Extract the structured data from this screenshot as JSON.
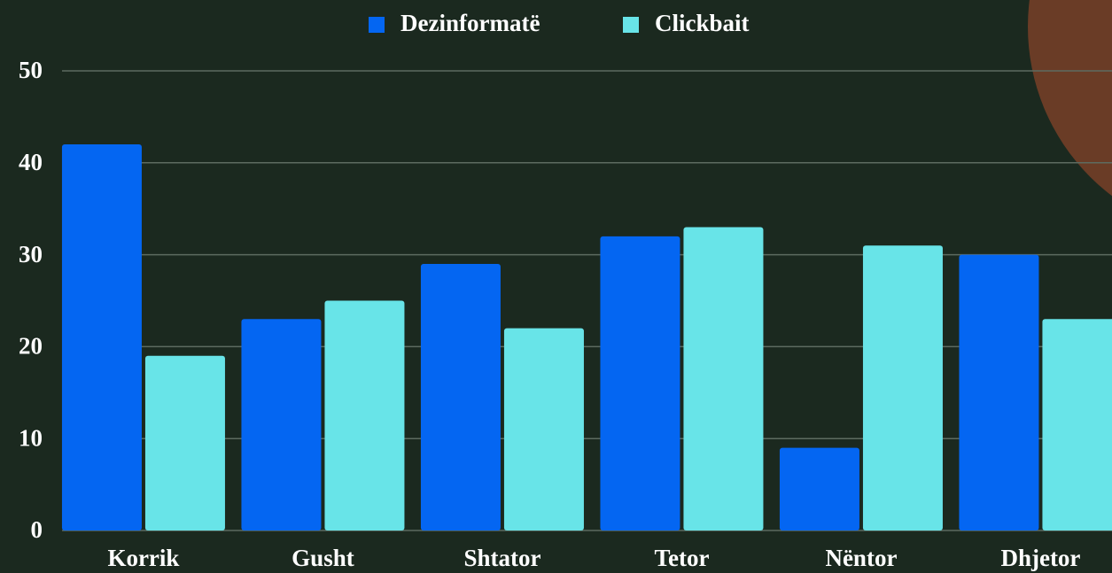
{
  "chart_data": {
    "type": "bar",
    "categories": [
      "Korrik",
      "Gusht",
      "Shtator",
      "Tetor",
      "Nëntor",
      "Dhjetor"
    ],
    "series": [
      {
        "name": "Dezinformatë",
        "color": "#0466f2",
        "values": [
          42,
          23,
          29,
          32,
          9,
          30
        ]
      },
      {
        "name": "Clickbait",
        "color": "#68e4e8",
        "values": [
          19,
          25,
          22,
          33,
          31,
          23
        ]
      }
    ],
    "ylim": [
      0,
      50
    ],
    "yticks": [
      0,
      10,
      20,
      30,
      40,
      50
    ],
    "grid": true,
    "legend": "top"
  }
}
